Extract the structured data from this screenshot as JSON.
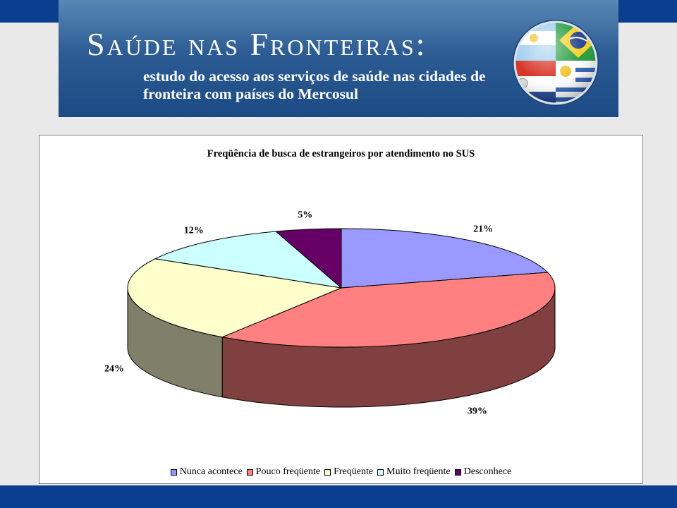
{
  "banner": {
    "title": "Saúde nas Fronteiras:",
    "subtitle": "estudo do acesso aos serviços de saúde nas cidades de fronteira com países do Mercosul",
    "emblem_icon": "mercosul-flags-globe-icon"
  },
  "chart_data": {
    "type": "pie",
    "title": "Freqüência de busca de estrangeiros por atendimento no SUS",
    "categories": [
      "Nunca acontece",
      "Pouco freqüente",
      "Freqüente",
      "Muito freqüente",
      "Desconhece"
    ],
    "values": [
      21,
      39,
      24,
      12,
      5
    ],
    "labels": [
      "21%",
      "39%",
      "24%",
      "12%",
      "5%"
    ],
    "colors": [
      "#9999ff",
      "#ff8080",
      "#ffffcc",
      "#ccffff",
      "#660066"
    ],
    "side_colors": [
      "#4c4c80",
      "#804040",
      "#80806a",
      "#6a8080",
      "#330033"
    ],
    "three_d": true,
    "legend_position": "bottom"
  }
}
